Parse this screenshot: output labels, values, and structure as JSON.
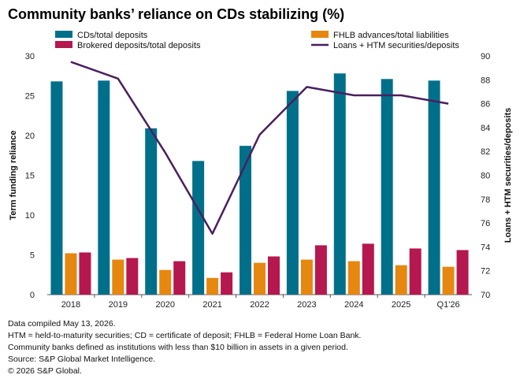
{
  "chart_data": {
    "type": "bar",
    "title": "Community banks’ reliance on CDs stabilizing (%)",
    "categories": [
      "2018",
      "2019",
      "2020",
      "2021",
      "2022",
      "2023",
      "2024",
      "2025",
      "Q1'26"
    ],
    "series": [
      {
        "name": "CDs/total deposits",
        "axis": "left",
        "type": "bar",
        "color": "#00708a",
        "values": [
          26.8,
          26.9,
          20.9,
          16.8,
          18.7,
          25.6,
          27.8,
          27.1,
          26.9
        ]
      },
      {
        "name": "FHLB advances/total liabilities",
        "axis": "left",
        "type": "bar",
        "color": "#e6870f",
        "values": [
          5.2,
          4.4,
          3.1,
          2.1,
          4.0,
          4.4,
          4.2,
          3.7,
          3.5
        ]
      },
      {
        "name": "Brokered deposits/total deposits",
        "axis": "left",
        "type": "bar",
        "color": "#b5174f",
        "values": [
          5.3,
          4.6,
          4.2,
          2.8,
          4.8,
          6.2,
          6.4,
          5.8,
          5.6
        ]
      },
      {
        "name": "Loans + HTM securities/deposits",
        "axis": "right",
        "type": "line",
        "color": "#4a1f5e",
        "values": [
          89.5,
          88.1,
          81.9,
          75.1,
          83.4,
          87.4,
          86.7,
          86.7,
          86.0
        ]
      }
    ],
    "ylabel": "Term funding reliance",
    "ylim": [
      0,
      30
    ],
    "yticks": [
      "0",
      "5",
      "10",
      "15",
      "20",
      "25",
      "30"
    ],
    "y2label": "Loans + HTM securities/deposits",
    "y2lim": [
      70,
      90
    ],
    "y2ticks": [
      "70",
      "72",
      "74",
      "76",
      "78",
      "80",
      "82",
      "84",
      "86",
      "88",
      "90"
    ],
    "grid": false,
    "legend": "top"
  },
  "notes": [
    "Data compiled May 13, 2026.",
    "HTM = held-to-maturity securities; CD = certificate of deposit; FHLB = Federal Home Loan Bank.",
    "Community banks defined as institutions with less than $10 billion in assets in a given period.",
    "Source: S&P Global Market Intelligence.",
    "© 2026 S&P Global."
  ]
}
